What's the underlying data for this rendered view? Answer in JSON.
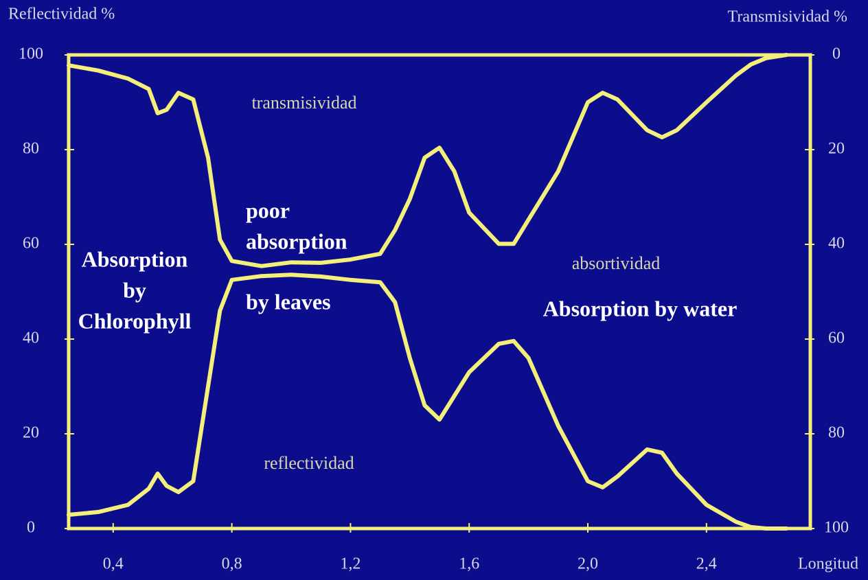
{
  "chart_data": {
    "type": "line",
    "y_label": "Reflectividad %",
    "y2_label": "Transmisividad %",
    "x_label": "Longitud",
    "x": [
      0.25,
      0.35,
      0.45,
      0.52,
      0.55,
      0.58,
      0.62,
      0.67,
      0.72,
      0.76,
      0.8,
      0.9,
      1.0,
      1.1,
      1.2,
      1.3,
      1.35,
      1.4,
      1.45,
      1.5,
      1.55,
      1.6,
      1.7,
      1.75,
      1.8,
      1.9,
      2.0,
      2.05,
      2.1,
      2.2,
      2.25,
      2.3,
      2.4,
      2.5,
      2.55,
      2.6,
      2.67
    ],
    "series": [
      {
        "name": "reflectividad",
        "color": "#f4ee7a",
        "values": [
          2.9,
          3.5,
          5,
          8.4,
          11.6,
          9,
          7.7,
          10,
          30,
          46,
          52.5,
          53.3,
          53.6,
          53.2,
          52.5,
          52,
          47.8,
          36,
          26,
          23,
          28,
          33,
          39,
          39.6,
          36,
          21.7,
          10,
          8.7,
          11,
          16.7,
          16,
          11.6,
          5,
          1.4,
          0.3,
          0,
          0
        ]
      },
      {
        "name": "transmisividad",
        "color": "#f4ee7a",
        "axis": "y2",
        "values": [
          2.2,
          3.3,
          5,
          7.2,
          12.3,
          11.6,
          8,
          9.4,
          21.7,
          39,
          43.5,
          44.6,
          43.8,
          43.9,
          43.2,
          42,
          37,
          30.4,
          21.7,
          19.6,
          24.6,
          33.3,
          39.9,
          39.9,
          34.8,
          24.6,
          10,
          8,
          9.4,
          15.9,
          17.4,
          15.9,
          10,
          4.3,
          2,
          0.7,
          0
        ]
      }
    ],
    "annotations": [
      [
        "absortividad"
      ],
      [
        "Absorption",
        "by",
        "Chlorophyll"
      ],
      [
        "poor",
        "absorption"
      ],
      [
        "by leaves"
      ],
      [
        "Absorption by water"
      ]
    ],
    "xlim": [
      0.25,
      2.75
    ],
    "xticks": [
      {
        "value": 0.4,
        "label": "0,4"
      },
      {
        "value": 0.8,
        "label": "0,8"
      },
      {
        "value": 1.2,
        "label": "1,2"
      },
      {
        "value": 1.6,
        "label": "1,6"
      },
      {
        "value": 2.0,
        "label": "2,0"
      },
      {
        "value": 2.4,
        "label": "2,4"
      }
    ],
    "ylim": [
      0,
      100
    ],
    "yticks": [
      0,
      20,
      40,
      60,
      80,
      100
    ],
    "y2lim": [
      100,
      0
    ],
    "y2ticks": [
      0,
      20,
      40,
      60,
      80,
      100
    ],
    "frame_color": "#f4ee7a",
    "background": "#0b0d8c"
  }
}
